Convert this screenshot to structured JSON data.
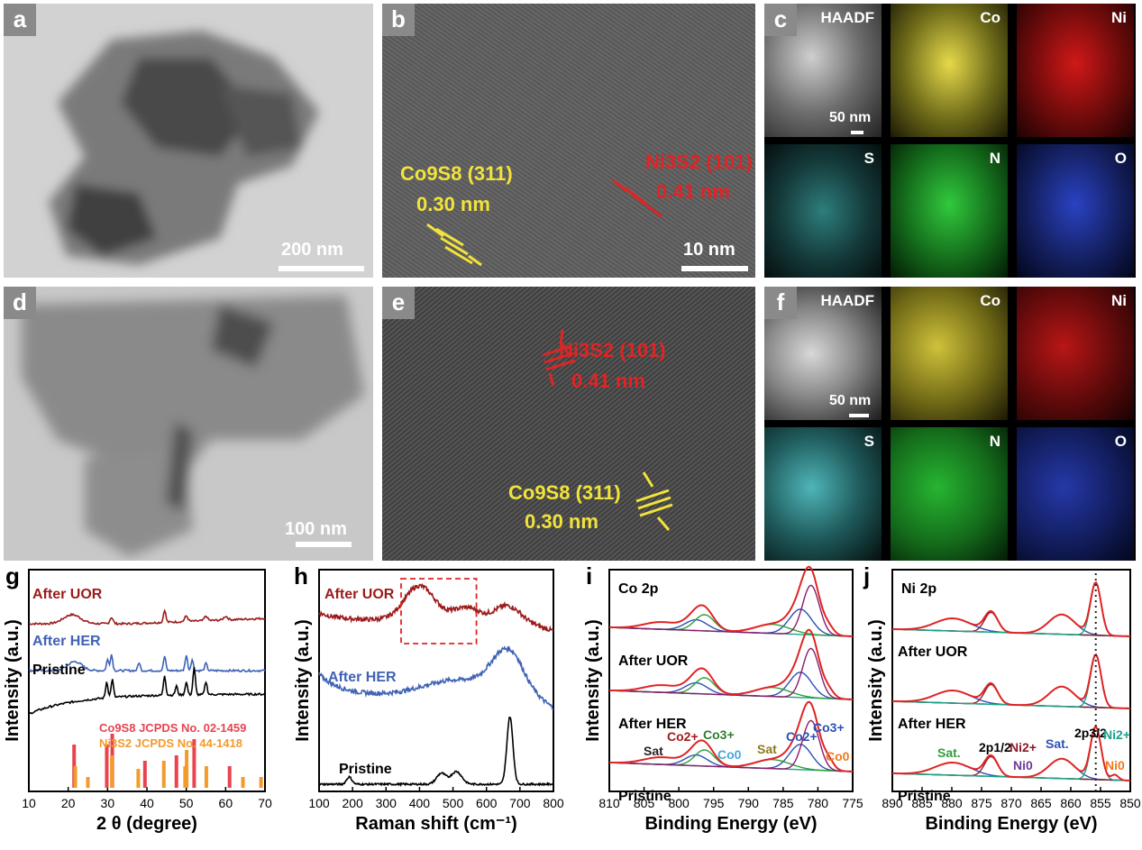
{
  "panels": {
    "a": {
      "letter": "a",
      "scale": "200 nm"
    },
    "b": {
      "letter": "b",
      "scale": "10 nm",
      "co9s8_label": "Co9S8 (311)",
      "co9s8_d": "0.30 nm",
      "ni3s2_label": "Ni3S2 (101)",
      "ni3s2_d": "0.41 nm"
    },
    "c": {
      "letter": "c",
      "maps": [
        "HAADF",
        "Co",
        "Ni",
        "S",
        "N",
        "O"
      ],
      "scale": "50 nm"
    },
    "d": {
      "letter": "d",
      "scale": "100 nm"
    },
    "e": {
      "letter": "e",
      "ni3s2_label": "Ni3S2 (101)",
      "ni3s2_d": "0.41 nm",
      "co9s8_label": "Co9S8 (311)",
      "co9s8_d": "0.30 nm"
    },
    "f": {
      "letter": "f",
      "maps": [
        "HAADF",
        "Co",
        "Ni",
        "S",
        "N",
        "O"
      ],
      "scale": "50 nm"
    },
    "g": {
      "letter": "g"
    },
    "h": {
      "letter": "h"
    },
    "i": {
      "letter": "i"
    },
    "j": {
      "letter": "j"
    }
  },
  "chart_data": [
    {
      "id": "g",
      "type": "line",
      "title": "",
      "xlabel": "2 θ (degree)",
      "ylabel": "Intensity (a.u.)",
      "xlim": [
        10,
        70
      ],
      "xticks": [
        10,
        20,
        30,
        40,
        50,
        60,
        70
      ],
      "series": [
        {
          "name": "After UOR",
          "color": "#9b1b1b",
          "peaks": [
            21,
            31,
            44.5,
            50,
            55,
            60
          ]
        },
        {
          "name": "After HER",
          "color": "#3f62b5",
          "peaks": [
            21.7,
            30,
            31,
            38,
            44.5,
            50,
            51.5,
            55
          ]
        },
        {
          "name": "Pristine",
          "color": "#000000",
          "peaks": [
            29.8,
            31.2,
            44.5,
            47.5,
            50,
            52,
            55
          ]
        }
      ],
      "references": [
        {
          "name": "Co9S8 JCPDS No. 02-1459",
          "color": "#e8434f",
          "lines": [
            [
              21.5,
              0.8
            ],
            [
              29.8,
              0.8
            ],
            [
              31.2,
              1.0
            ],
            [
              39.5,
              0.5
            ],
            [
              47.5,
              0.6
            ],
            [
              52,
              0.9
            ],
            [
              61,
              0.4
            ]
          ]
        },
        {
          "name": "Ni3S2 JCPDS No. 44-1418",
          "color": "#f39a2b",
          "lines": [
            [
              21.8,
              0.4
            ],
            [
              25,
              0.2
            ],
            [
              31.1,
              0.6
            ],
            [
              37.8,
              0.35
            ],
            [
              44.3,
              0.5
            ],
            [
              49.7,
              0.4
            ],
            [
              50.1,
              0.7
            ],
            [
              55.1,
              0.4
            ],
            [
              64.4,
              0.2
            ],
            [
              69,
              0.2
            ]
          ]
        }
      ]
    },
    {
      "id": "h",
      "type": "line",
      "title": "",
      "xlabel": "Raman shift (cm⁻¹)",
      "ylabel": "Intensity (a.u.)",
      "xlim": [
        100,
        800
      ],
      "xticks": [
        100,
        200,
        300,
        400,
        500,
        600,
        700,
        800
      ],
      "series": [
        {
          "name": "After UOR",
          "color": "#9b1b1b",
          "peaks": [
            400,
            540,
            660
          ]
        },
        {
          "name": "After HER",
          "color": "#3f62b5",
          "peaks": [
            550,
            660
          ]
        },
        {
          "name": "Pristine",
          "color": "#000000",
          "peaks": [
            190,
            465,
            510,
            670
          ]
        }
      ]
    },
    {
      "id": "i",
      "type": "line",
      "title": "Co 2p",
      "xlabel": "Binding Energy (eV)",
      "ylabel": "Intensity (a.u.)",
      "xlim": [
        810,
        775
      ],
      "xticks": [
        810,
        805,
        800,
        795,
        790,
        785,
        780,
        775
      ],
      "series": [
        {
          "name": "After UOR"
        },
        {
          "name": "After HER"
        },
        {
          "name": "Pristine"
        }
      ],
      "annotations": [
        "Sat",
        "Co2+",
        "Co3+",
        "Co0",
        "Sat",
        "Co2+",
        "Co3+",
        "Co0"
      ]
    },
    {
      "id": "j",
      "type": "line",
      "title": "Ni 2p",
      "xlabel": "Binding Energy (eV)",
      "ylabel": "Intensity (a.u.)",
      "xlim": [
        890,
        850
      ],
      "xticks": [
        890,
        885,
        880,
        875,
        870,
        865,
        860,
        855,
        850
      ],
      "series": [
        {
          "name": "After UOR"
        },
        {
          "name": "After HER"
        },
        {
          "name": "Pristine"
        }
      ],
      "annotations": [
        "Sat.",
        "2p1/2",
        "Ni2+",
        "Ni0",
        "Sat.",
        "2p3/2",
        "Ni2+",
        "Ni0"
      ]
    }
  ]
}
